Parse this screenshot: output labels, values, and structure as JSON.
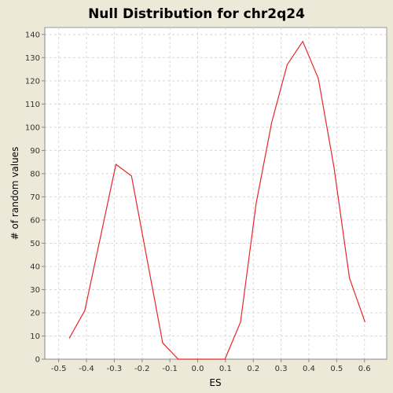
{
  "chart_data": {
    "type": "line",
    "title": "Null Distribution for chr2q24",
    "xlabel": "ES",
    "ylabel": "# of random values",
    "xlim": [
      -0.55,
      0.68
    ],
    "ylim": [
      0,
      143
    ],
    "x_ticks": [
      "-0.5",
      "-0.4",
      "-0.3",
      "-0.2",
      "-0.1",
      "0.0",
      "0.1",
      "0.2",
      "0.3",
      "0.4",
      "0.5",
      "0.6"
    ],
    "x_tick_values": [
      -0.5,
      -0.4,
      -0.3,
      -0.2,
      -0.1,
      0.0,
      0.1,
      0.2,
      0.3,
      0.4,
      0.5,
      0.6
    ],
    "y_ticks": [
      "0",
      "10",
      "20",
      "30",
      "40",
      "50",
      "60",
      "70",
      "80",
      "90",
      "100",
      "110",
      "120",
      "130",
      "140"
    ],
    "y_tick_values": [
      0,
      10,
      20,
      30,
      40,
      50,
      60,
      70,
      80,
      90,
      100,
      110,
      120,
      130,
      140
    ],
    "grid": true,
    "series": [
      {
        "color": "#e8262b",
        "x": [
          -0.462,
          -0.406,
          -0.294,
          -0.238,
          -0.126,
          -0.07,
          0.098,
          0.154,
          0.21,
          0.266,
          0.322,
          0.378,
          0.434,
          0.49,
          0.546,
          0.602
        ],
        "y": [
          9,
          21,
          84,
          79,
          7,
          0,
          0,
          16,
          67,
          102,
          127,
          137,
          121,
          83,
          35,
          16
        ]
      }
    ]
  }
}
